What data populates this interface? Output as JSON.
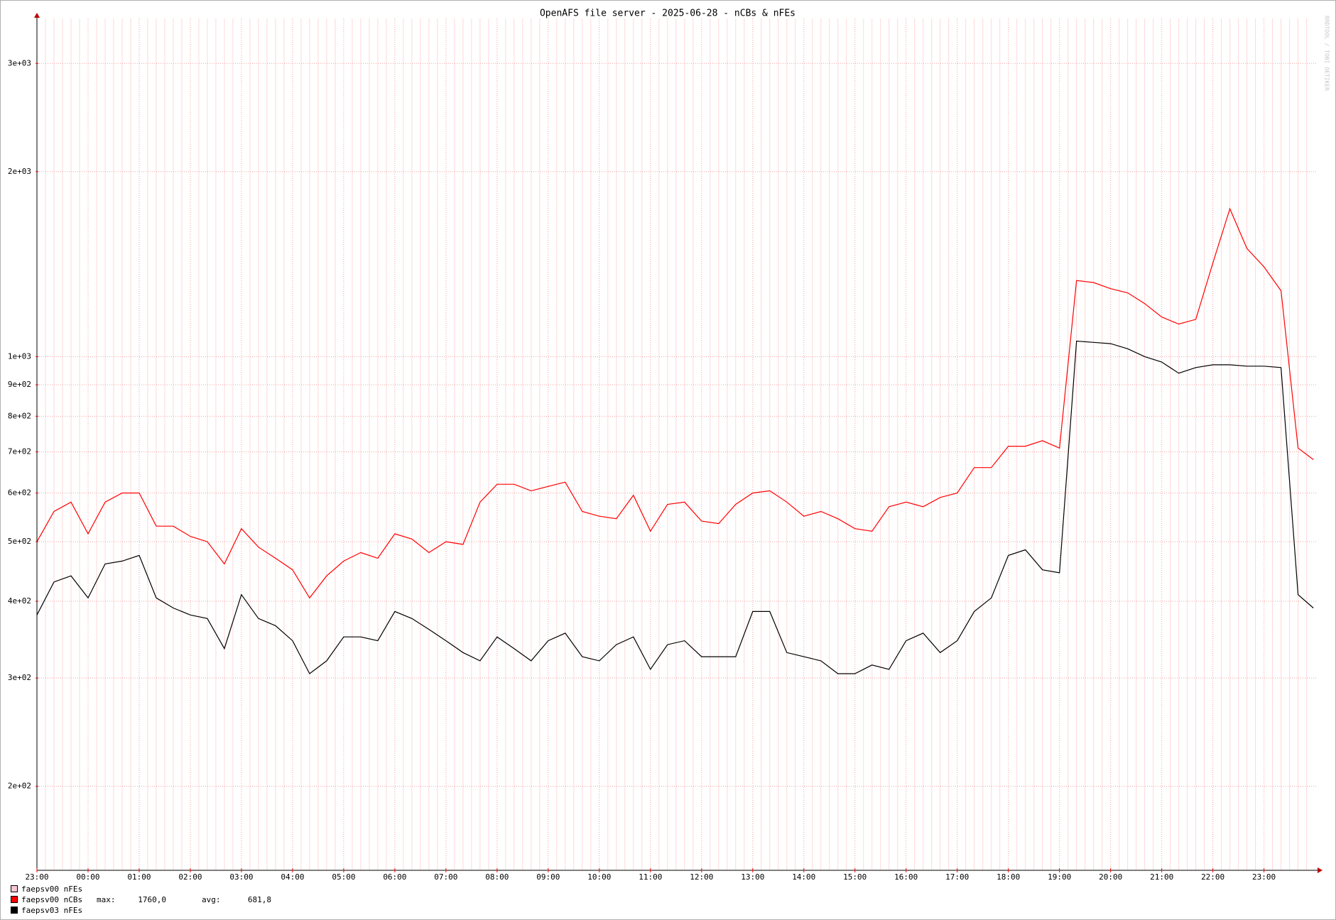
{
  "chart_data": {
    "type": "line",
    "title": "OpenAFS file server - 2025-06-28 - nCBs & nFEs",
    "watermark": "RRDTOOL / TOBI OETIKER",
    "log_scale": true,
    "grid": true,
    "x": [
      "23:00",
      "23:20",
      "23:40",
      "00:00",
      "00:20",
      "00:40",
      "01:00",
      "01:20",
      "01:40",
      "02:00",
      "02:20",
      "02:40",
      "03:00",
      "03:20",
      "03:40",
      "04:00",
      "04:20",
      "04:40",
      "05:00",
      "05:20",
      "05:40",
      "06:00",
      "06:20",
      "06:40",
      "07:00",
      "07:20",
      "07:40",
      "08:00",
      "08:20",
      "08:40",
      "09:00",
      "09:20",
      "09:40",
      "10:00",
      "10:20",
      "10:40",
      "11:00",
      "11:20",
      "11:40",
      "12:00",
      "12:20",
      "12:40",
      "13:00",
      "13:20",
      "13:40",
      "14:00",
      "14:20",
      "14:40",
      "15:00",
      "15:20",
      "15:40",
      "16:00",
      "16:20",
      "16:40",
      "17:00",
      "17:20",
      "17:40",
      "18:00",
      "18:20",
      "18:40",
      "19:00",
      "19:20",
      "19:40",
      "20:00",
      "20:20",
      "20:40",
      "21:00",
      "21:20",
      "21:40",
      "22:00",
      "22:20",
      "22:40",
      "23:00",
      "23:20",
      "23:40",
      "23:58"
    ],
    "xticks": [
      "23:00",
      "00:00",
      "01:00",
      "02:00",
      "03:00",
      "04:00",
      "05:00",
      "06:00",
      "07:00",
      "08:00",
      "09:00",
      "10:00",
      "11:00",
      "12:00",
      "13:00",
      "14:00",
      "15:00",
      "16:00",
      "17:00",
      "18:00",
      "19:00",
      "20:00",
      "21:00",
      "22:00",
      "23:00"
    ],
    "ylim": [
      146,
      3550
    ],
    "yticks": [
      {
        "value": 200,
        "label": "2e+02"
      },
      {
        "value": 300,
        "label": "3e+02"
      },
      {
        "value": 400,
        "label": "4e+02"
      },
      {
        "value": 500,
        "label": "5e+02"
      },
      {
        "value": 600,
        "label": "6e+02"
      },
      {
        "value": 700,
        "label": "7e+02"
      },
      {
        "value": 800,
        "label": "8e+02"
      },
      {
        "value": 900,
        "label": "9e+02"
      },
      {
        "value": 1000,
        "label": "1e+03"
      },
      {
        "value": 2000,
        "label": "2e+03"
      },
      {
        "value": 3000,
        "label": "3e+03"
      }
    ],
    "series": [
      {
        "name": "faepsv00 nFEs",
        "color": "#f7c6cf",
        "values": [
          null,
          null,
          null,
          null,
          null,
          null,
          null,
          null,
          null,
          null,
          null,
          null,
          null,
          null,
          null,
          null,
          null,
          null,
          null,
          null,
          null,
          null,
          null,
          null,
          null,
          null,
          null,
          null,
          null,
          null,
          null,
          null,
          null,
          null,
          null,
          null,
          null,
          null,
          null,
          null,
          null,
          null,
          null,
          null,
          null,
          null,
          null,
          null,
          null,
          null,
          null,
          null,
          null,
          null,
          null,
          null,
          null,
          null,
          null,
          null,
          null,
          null,
          null,
          null,
          null,
          null,
          null,
          null,
          null,
          null,
          null,
          null,
          null,
          null,
          null,
          null
        ]
      },
      {
        "name": "faepsv00 nCBs",
        "color": "#ff0000",
        "stats": [
          {
            "label": "max:",
            "value": 1760.0,
            "value_label": "1760,0"
          },
          {
            "label": "avg:",
            "value": 681.8,
            "value_label": "681,8"
          }
        ],
        "values": [
          500,
          560,
          580,
          515,
          580,
          600,
          600,
          530,
          530,
          510,
          500,
          460,
          525,
          490,
          470,
          450,
          405,
          440,
          465,
          480,
          470,
          515,
          505,
          480,
          500,
          495,
          580,
          620,
          620,
          605,
          615,
          625,
          560,
          550,
          545,
          595,
          520,
          575,
          580,
          540,
          535,
          575,
          600,
          605,
          580,
          550,
          560,
          545,
          525,
          520,
          570,
          580,
          570,
          590,
          600,
          660,
          660,
          715,
          715,
          730,
          710,
          1330,
          1320,
          1290,
          1270,
          1220,
          1160,
          1130,
          1150,
          1420,
          1740,
          1500,
          1400,
          1280,
          710,
          680
        ]
      },
      {
        "name": "faepsv03 nFEs",
        "color": "#000000",
        "values": [
          380,
          430,
          440,
          405,
          460,
          465,
          475,
          405,
          390,
          380,
          375,
          335,
          410,
          375,
          365,
          345,
          305,
          320,
          350,
          350,
          345,
          385,
          375,
          360,
          345,
          330,
          320,
          350,
          335,
          320,
          345,
          355,
          325,
          320,
          340,
          350,
          310,
          340,
          345,
          325,
          325,
          325,
          385,
          385,
          330,
          325,
          320,
          305,
          305,
          315,
          310,
          345,
          355,
          330,
          345,
          385,
          405,
          475,
          485,
          450,
          445,
          1060,
          1055,
          1050,
          1030,
          1000,
          980,
          940,
          960,
          970,
          970,
          965,
          965,
          960,
          410,
          390
        ]
      }
    ]
  }
}
